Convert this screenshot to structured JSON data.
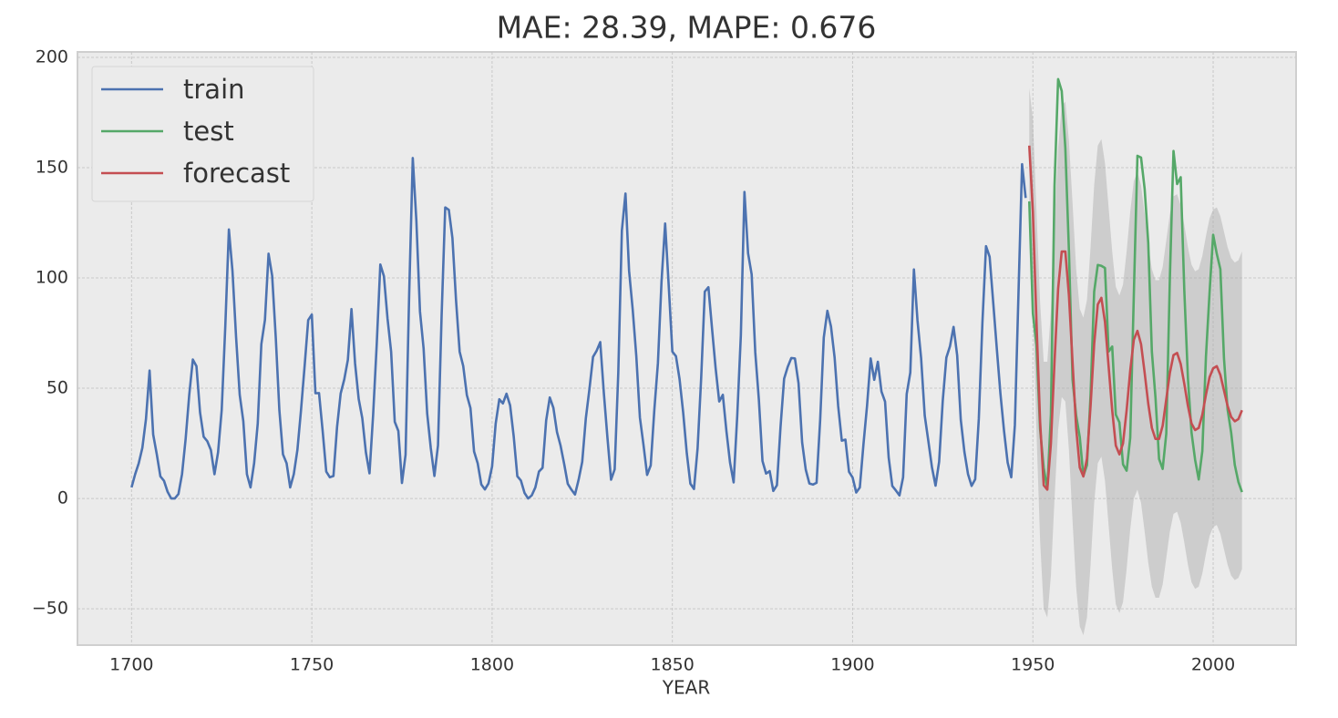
{
  "chart_data": {
    "type": "line",
    "title": "MAE: 28.39, MAPE: 0.676",
    "xlabel": "YEAR",
    "xlim": [
      1685,
      2023
    ],
    "ylim": [
      -66.5,
      202.5
    ],
    "xticks": [
      1700,
      1750,
      1800,
      1850,
      1900,
      1950,
      2000
    ],
    "yticks": [
      {
        "value": -50,
        "label": "−50"
      },
      0,
      50,
      100,
      150,
      200
    ],
    "grid": true,
    "legend": "upper left",
    "band": {
      "color": "#b0b0b0",
      "x": [
        1949,
        1950,
        1951,
        1952,
        1953,
        1954,
        1955,
        1956,
        1957,
        1958,
        1959,
        1960,
        1961,
        1962,
        1963,
        1964,
        1965,
        1966,
        1967,
        1968,
        1969,
        1970,
        1971,
        1972,
        1973,
        1974,
        1975,
        1976,
        1977,
        1978,
        1979,
        1980,
        1981,
        1982,
        1983,
        1984,
        1985,
        1986,
        1987,
        1988,
        1989,
        1990,
        1991,
        1992,
        1993,
        1994,
        1995,
        1996,
        1997,
        1998,
        1999,
        2000,
        2001,
        2002,
        2003,
        2004,
        2005,
        2006,
        2007,
        2008
      ],
      "lower": [
        134,
        88,
        30,
        -19,
        -50,
        -54,
        -35,
        0,
        31,
        46,
        44,
        22,
        -10,
        -40,
        -58,
        -62,
        -54,
        -30,
        -2,
        16,
        19,
        8,
        -12,
        -32,
        -48,
        -52,
        -47,
        -32,
        -14,
        0,
        4,
        -2,
        -15,
        -29,
        -40,
        -45,
        -45,
        -39,
        -27,
        -15,
        -7,
        -6,
        -11,
        -20,
        -30,
        -38,
        -41,
        -40,
        -34,
        -25,
        -17,
        -13,
        -12,
        -16,
        -23,
        -30,
        -35,
        -37,
        -36,
        -32
      ],
      "upper": [
        186,
        172,
        130,
        89,
        62,
        62,
        85,
        124,
        159,
        178,
        180,
        162,
        134,
        104,
        86,
        82,
        90,
        114,
        142,
        160,
        163,
        152,
        132,
        112,
        96,
        92,
        97,
        112,
        130,
        144,
        148,
        142,
        129,
        115,
        104,
        99,
        99,
        105,
        117,
        129,
        137,
        138,
        133,
        124,
        114,
        106,
        103,
        104,
        110,
        119,
        127,
        131,
        132,
        128,
        121,
        114,
        109,
        107,
        108,
        112
      ]
    },
    "series": [
      {
        "name": "train",
        "color": "#4c72b0",
        "x": [
          1700,
          1701,
          1702,
          1703,
          1704,
          1705,
          1706,
          1707,
          1708,
          1709,
          1710,
          1711,
          1712,
          1713,
          1714,
          1715,
          1716,
          1717,
          1718,
          1719,
          1720,
          1721,
          1722,
          1723,
          1724,
          1725,
          1726,
          1727,
          1728,
          1729,
          1730,
          1731,
          1732,
          1733,
          1734,
          1735,
          1736,
          1737,
          1738,
          1739,
          1740,
          1741,
          1742,
          1743,
          1744,
          1745,
          1746,
          1747,
          1748,
          1749,
          1750,
          1751,
          1752,
          1753,
          1754,
          1755,
          1756,
          1757,
          1758,
          1759,
          1760,
          1761,
          1762,
          1763,
          1764,
          1765,
          1766,
          1767,
          1768,
          1769,
          1770,
          1771,
          1772,
          1773,
          1774,
          1775,
          1776,
          1777,
          1778,
          1779,
          1780,
          1781,
          1782,
          1783,
          1784,
          1785,
          1786,
          1787,
          1788,
          1789,
          1790,
          1791,
          1792,
          1793,
          1794,
          1795,
          1796,
          1797,
          1798,
          1799,
          1800,
          1801,
          1802,
          1803,
          1804,
          1805,
          1806,
          1807,
          1808,
          1809,
          1810,
          1811,
          1812,
          1813,
          1814,
          1815,
          1816,
          1817,
          1818,
          1819,
          1820,
          1821,
          1822,
          1823,
          1824,
          1825,
          1826,
          1827,
          1828,
          1829,
          1830,
          1831,
          1832,
          1833,
          1834,
          1835,
          1836,
          1837,
          1838,
          1839,
          1840,
          1841,
          1842,
          1843,
          1844,
          1845,
          1846,
          1847,
          1848,
          1849,
          1850,
          1851,
          1852,
          1853,
          1854,
          1855,
          1856,
          1857,
          1858,
          1859,
          1860,
          1861,
          1862,
          1863,
          1864,
          1865,
          1866,
          1867,
          1868,
          1869,
          1870,
          1871,
          1872,
          1873,
          1874,
          1875,
          1876,
          1877,
          1878,
          1879,
          1880,
          1881,
          1882,
          1883,
          1884,
          1885,
          1886,
          1887,
          1888,
          1889,
          1890,
          1891,
          1892,
          1893,
          1894,
          1895,
          1896,
          1897,
          1898,
          1899,
          1900,
          1901,
          1902,
          1903,
          1904,
          1905,
          1906,
          1907,
          1908,
          1909,
          1910,
          1911,
          1912,
          1913,
          1914,
          1915,
          1916,
          1917,
          1918,
          1919,
          1920,
          1921,
          1922,
          1923,
          1924,
          1925,
          1926,
          1927,
          1928,
          1929,
          1930,
          1931,
          1932,
          1933,
          1934,
          1935,
          1936,
          1937,
          1938,
          1939,
          1940,
          1941,
          1942,
          1943,
          1944,
          1945,
          1946,
          1947,
          1948
        ],
        "values": [
          5,
          11,
          16,
          23,
          36,
          58,
          29,
          20,
          10,
          8,
          3,
          0,
          0,
          2,
          11,
          27,
          47,
          63,
          60,
          39,
          28,
          26,
          22,
          11,
          21,
          40,
          78,
          122,
          103,
          73,
          47,
          35,
          11,
          5,
          16,
          34,
          70,
          81,
          111,
          101,
          73,
          40,
          20,
          16,
          5,
          11,
          22,
          40,
          60,
          80.9,
          83.4,
          47.7,
          47.8,
          30.7,
          12.2,
          9.6,
          10.2,
          32.4,
          47.6,
          54,
          62.9,
          85.9,
          61.2,
          45.1,
          36.4,
          20.9,
          11.4,
          37.8,
          69.8,
          106.1,
          100.8,
          81.6,
          66.5,
          34.8,
          30.6,
          7,
          19.8,
          92.5,
          154.4,
          125.9,
          84.8,
          68.1,
          38.5,
          22.8,
          10.2,
          24.1,
          82.9,
          132,
          130.9,
          118.1,
          89.9,
          66.6,
          60,
          46.9,
          41,
          21.3,
          16,
          6.4,
          4.1,
          6.8,
          14.5,
          34,
          45,
          43.1,
          47.5,
          42.2,
          28.1,
          10.1,
          8.1,
          2.5,
          0,
          1.4,
          5,
          12.2,
          13.9,
          35.4,
          45.8,
          41.1,
          30.1,
          23.9,
          15.6,
          6.6,
          4,
          1.8,
          8.5,
          16.6,
          36.3,
          49.6,
          64.2,
          67,
          70.9,
          47.8,
          27.5,
          8.5,
          13.2,
          56.9,
          121.5,
          138.3,
          103.2,
          85.7,
          64.6,
          36.7,
          24.2,
          10.7,
          15,
          40.1,
          61.5,
          98.5,
          124.7,
          96.3,
          66.6,
          64.5,
          54.1,
          39,
          20.6,
          6.7,
          4.3,
          22.7,
          54.8,
          93.8,
          95.8,
          77.2,
          59.1,
          44,
          47,
          30.5,
          16.3,
          7.3,
          37.6,
          74,
          139,
          111.2,
          101.6,
          66.2,
          44.7,
          17,
          11.3,
          12.4,
          3.4,
          6,
          32.3,
          54.3,
          59.7,
          63.7,
          63.5,
          52.2,
          25.4,
          13.1,
          6.8,
          6.3,
          7.1,
          35.6,
          73,
          85.1,
          78,
          64,
          41.8,
          26.2,
          26.7,
          12.1,
          9.5,
          2.7,
          5,
          24.4,
          42,
          63.5,
          53.8,
          62,
          48.5,
          43.9,
          18.6,
          5.7,
          3.6,
          1.4,
          9.6,
          47.4,
          57.1,
          103.9,
          80.6,
          63.6,
          37.6,
          26.1,
          14.2,
          5.8,
          16.7,
          44.3,
          63.9,
          69,
          77.8,
          64.9,
          35.7,
          21.2,
          11.1,
          5.7,
          8.7,
          36.1,
          79.7,
          114.4,
          109.6,
          88.8,
          67.8,
          47.5,
          30.6,
          16.3,
          9.6,
          33.2,
          92.6,
          151.6,
          136.3
        ]
      },
      {
        "name": "test",
        "color": "#55a868",
        "x": [
          1949,
          1950,
          1951,
          1952,
          1953,
          1954,
          1955,
          1956,
          1957,
          1958,
          1959,
          1960,
          1961,
          1962,
          1963,
          1964,
          1965,
          1966,
          1967,
          1968,
          1969,
          1970,
          1971,
          1972,
          1973,
          1974,
          1975,
          1976,
          1977,
          1978,
          1979,
          1980,
          1981,
          1982,
          1983,
          1984,
          1985,
          1986,
          1987,
          1988,
          1989,
          1990,
          1991,
          1992,
          1993,
          1994,
          1995,
          1996,
          1997,
          1998,
          1999,
          2000,
          2001,
          2002,
          2003,
          2004,
          2005,
          2006,
          2007,
          2008
        ],
        "values": [
          134.7,
          83.9,
          69.4,
          31.5,
          13.9,
          4.4,
          38,
          141.7,
          190.2,
          184.8,
          159,
          112.3,
          53.9,
          37.6,
          27.9,
          10.2,
          15.1,
          47,
          93.8,
          105.9,
          105.5,
          104.5,
          66.6,
          68.9,
          38,
          34.5,
          15.5,
          12.6,
          27.5,
          92.5,
          155.4,
          154.6,
          140.4,
          115.9,
          66.6,
          45.9,
          17.9,
          13.4,
          29.4,
          100.2,
          157.6,
          142.6,
          145.7,
          94.3,
          54.6,
          29.9,
          17.5,
          8.6,
          21.5,
          64.3,
          93.3,
          119.6,
          111,
          104,
          63.7,
          40.4,
          29.8,
          15.2,
          7.5,
          2.9
        ]
      },
      {
        "name": "forecast",
        "color": "#c44e52",
        "x": [
          1949,
          1950,
          1951,
          1952,
          1953,
          1954,
          1955,
          1956,
          1957,
          1958,
          1959,
          1960,
          1961,
          1962,
          1963,
          1964,
          1965,
          1966,
          1967,
          1968,
          1969,
          1970,
          1971,
          1972,
          1973,
          1974,
          1975,
          1976,
          1977,
          1978,
          1979,
          1980,
          1981,
          1982,
          1983,
          1984,
          1985,
          1986,
          1987,
          1988,
          1989,
          1990,
          1991,
          1992,
          1993,
          1994,
          1995,
          1996,
          1997,
          1998,
          1999,
          2000,
          2001,
          2002,
          2003,
          2004,
          2005,
          2006,
          2007,
          2008
        ],
        "values": [
          160,
          130,
          80,
          35,
          6,
          4,
          25,
          62,
          95,
          112,
          112,
          92,
          62,
          32,
          14,
          10,
          18,
          42,
          70,
          88,
          91,
          80,
          60,
          40,
          24,
          20,
          25,
          40,
          58,
          72,
          76,
          70,
          57,
          43,
          32,
          27,
          27,
          33,
          45,
          57,
          65,
          66,
          61,
          52,
          42,
          34,
          31,
          32,
          38,
          47,
          55,
          59,
          60,
          56,
          49,
          42,
          37,
          35,
          36,
          40
        ]
      }
    ]
  }
}
